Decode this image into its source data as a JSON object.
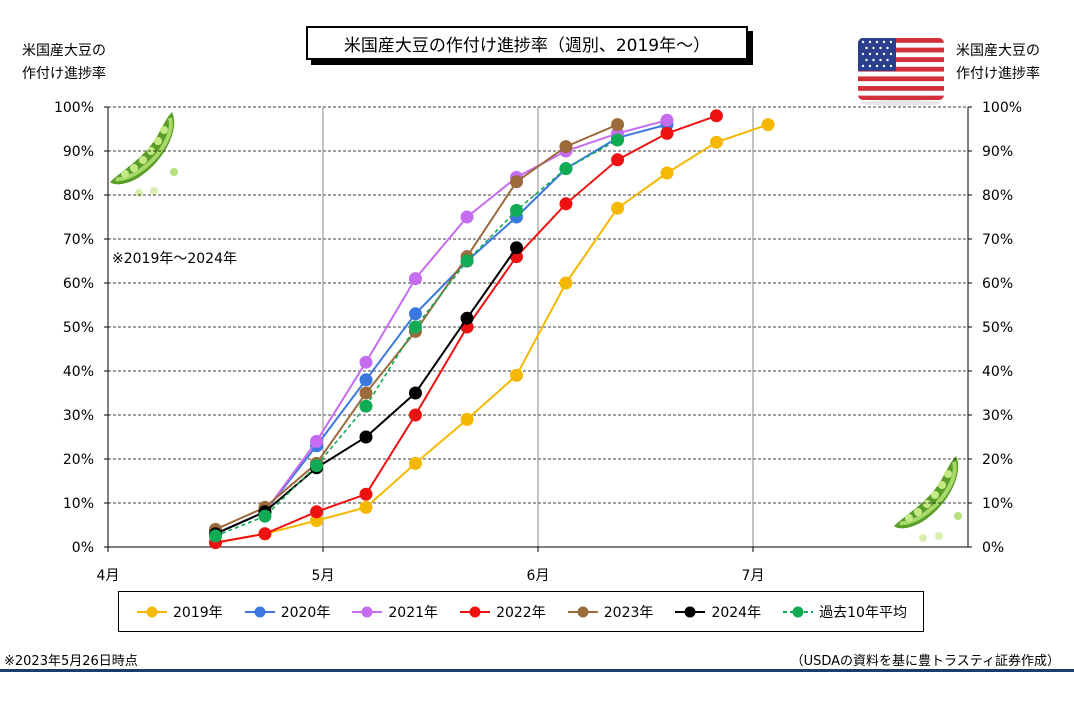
{
  "title": "米国産大豆の作付け進捗率（週別、2019年～）",
  "axis_left_title": [
    "米国産大豆の",
    "作付け進捗率"
  ],
  "axis_right_title": [
    "米国産大豆の",
    "作付け進捗率"
  ],
  "note_range": "※2019年～2024年",
  "footer_left": "※2023年5月26日時点",
  "footer_right": "（USDAの資料を基に豊トラスティ証券作成）",
  "icons": [
    "us-flag-icon",
    "pea-pod-icon"
  ],
  "chart_data": {
    "type": "line",
    "y_unit": "%",
    "ylim": [
      0,
      100
    ],
    "y_ticks": [
      0,
      10,
      20,
      30,
      40,
      50,
      60,
      70,
      80,
      90,
      100
    ],
    "y_tick_labels": [
      "0%",
      "10%",
      "20%",
      "30%",
      "40%",
      "50%",
      "60%",
      "70%",
      "80%",
      "90%",
      "100%"
    ],
    "x_axis": "month",
    "xlim": [
      4,
      8
    ],
    "x_ticks": [
      4,
      5,
      6,
      7
    ],
    "x_tick_labels": [
      "4月",
      "5月",
      "6月",
      "7月"
    ],
    "grid": "horizontal dashed, vertical solid at month ticks",
    "legend_position": "bottom",
    "series": [
      {
        "name": "2019年",
        "color": "#f5b800",
        "dash": false,
        "x": [
          4.5,
          4.73,
          4.97,
          5.2,
          5.43,
          5.67,
          5.9,
          6.13,
          6.37,
          6.6,
          6.83,
          7.07
        ],
        "y": [
          1,
          3,
          6,
          9,
          19,
          29,
          39,
          60,
          77,
          85,
          92,
          96
        ]
      },
      {
        "name": "2020年",
        "color": "#3a78e0",
        "dash": false,
        "x": [
          4.5,
          4.73,
          4.97,
          5.2,
          5.43,
          5.67,
          5.9,
          6.13,
          6.37,
          6.6
        ],
        "y": [
          3,
          8,
          23,
          38,
          53,
          65,
          75,
          86,
          93,
          96
        ]
      },
      {
        "name": "2021年",
        "color": "#c66cf0",
        "dash": false,
        "x": [
          4.5,
          4.73,
          4.97,
          5.2,
          5.43,
          5.67,
          5.9,
          6.13,
          6.37,
          6.6
        ],
        "y": [
          3,
          8,
          24,
          42,
          61,
          75,
          84,
          90,
          94,
          97
        ]
      },
      {
        "name": "2022年",
        "color": "#ee1111",
        "dash": false,
        "x": [
          4.5,
          4.73,
          4.97,
          5.2,
          5.43,
          5.67,
          5.9,
          6.13,
          6.37,
          6.6,
          6.83
        ],
        "y": [
          1,
          3,
          8,
          12,
          30,
          50,
          66,
          78,
          88,
          94,
          98
        ]
      },
      {
        "name": "2023年",
        "color": "#9b6b3c",
        "dash": false,
        "x": [
          4.5,
          4.73,
          4.97,
          5.2,
          5.43,
          5.67,
          5.9,
          6.13,
          6.37
        ],
        "y": [
          4,
          9,
          19,
          35,
          49,
          66,
          83,
          91,
          96
        ]
      },
      {
        "name": "2024年",
        "color": "#000000",
        "dash": false,
        "x": [
          4.5,
          4.73,
          4.97,
          5.2,
          5.43,
          5.67,
          5.9
        ],
        "y": [
          3,
          8,
          18,
          25,
          35,
          52,
          68
        ]
      },
      {
        "name": "過去10年平均",
        "color": "#11aa55",
        "dash": true,
        "x": [
          4.5,
          4.73,
          4.97,
          5.2,
          5.43,
          5.67,
          5.9,
          6.13,
          6.37
        ],
        "y": [
          2.5,
          7,
          18.5,
          32,
          50,
          65,
          76.5,
          86,
          92.5
        ]
      }
    ]
  }
}
